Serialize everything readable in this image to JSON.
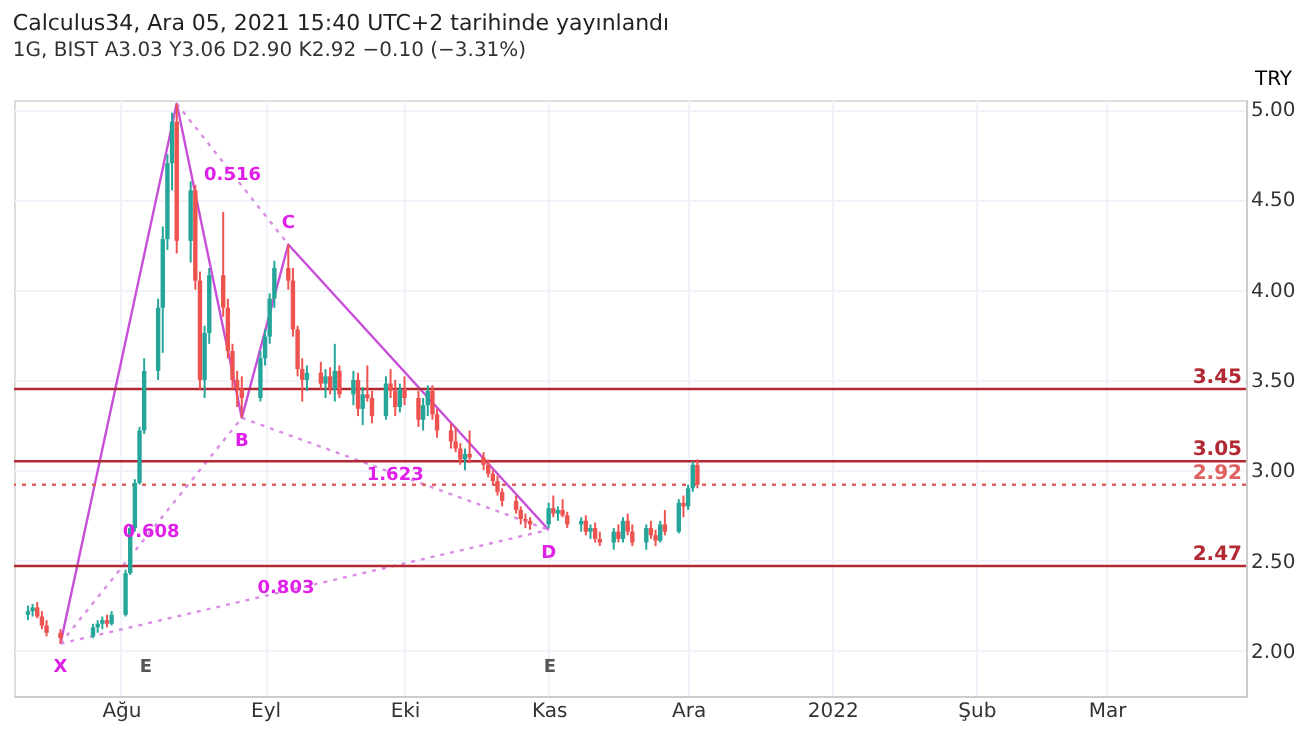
{
  "chart_data": {
    "type": "candlestick",
    "title": "Calculus34, Ara 05, 2021 15:40 UTC+2 tarihinde yayınlandı",
    "subtitle": "1G, BIST  A3.03  Y3.06  D2.90  K2.92  −0.10 (−3.31%)",
    "ylabel": "TRY",
    "x": [
      "2021-07-12",
      "2021-07-13",
      "2021-07-14",
      "2021-07-15",
      "2021-07-16",
      "2021-07-19",
      "2021-07-26",
      "2021-07-27",
      "2021-07-28",
      "2021-07-29",
      "2021-07-30",
      "2021-08-02",
      "2021-08-03",
      "2021-08-04",
      "2021-08-05",
      "2021-08-06",
      "2021-08-09",
      "2021-08-10",
      "2021-08-11",
      "2021-08-12",
      "2021-08-13",
      "2021-08-16",
      "2021-08-17",
      "2021-08-18",
      "2021-08-19",
      "2021-08-20",
      "2021-08-23",
      "2021-08-24",
      "2021-08-25",
      "2021-08-26",
      "2021-08-27",
      "2021-08-31",
      "2021-09-01",
      "2021-09-02",
      "2021-09-03",
      "2021-09-06",
      "2021-09-07",
      "2021-09-08",
      "2021-09-09",
      "2021-09-10",
      "2021-09-13",
      "2021-09-14",
      "2021-09-15",
      "2021-09-16",
      "2021-09-17",
      "2021-09-20",
      "2021-09-21",
      "2021-09-22",
      "2021-09-23",
      "2021-09-24",
      "2021-09-27",
      "2021-09-28",
      "2021-09-29",
      "2021-09-30",
      "2021-10-01",
      "2021-10-04",
      "2021-10-05",
      "2021-10-06",
      "2021-10-07",
      "2021-10-08",
      "2021-10-11",
      "2021-10-12",
      "2021-10-13",
      "2021-10-14",
      "2021-10-15",
      "2021-10-18",
      "2021-10-19",
      "2021-10-20",
      "2021-10-21",
      "2021-10-22",
      "2021-10-25",
      "2021-10-26",
      "2021-10-27",
      "2021-10-28",
      "2021-11-01",
      "2021-11-02",
      "2021-11-03",
      "2021-11-04",
      "2021-11-05",
      "2021-11-08",
      "2021-11-09",
      "2021-11-10",
      "2021-11-11",
      "2021-11-12",
      "2021-11-15",
      "2021-11-16",
      "2021-11-17",
      "2021-11-18",
      "2021-11-19",
      "2021-11-22",
      "2021-11-23",
      "2021-11-24",
      "2021-11-25",
      "2021-11-26",
      "2021-11-29",
      "2021-11-30",
      "2021-12-01",
      "2021-12-02",
      "2021-12-03"
    ],
    "ohlc": [
      [
        2.2,
        2.25,
        2.17,
        2.22
      ],
      [
        2.22,
        2.26,
        2.19,
        2.24
      ],
      [
        2.24,
        2.27,
        2.18,
        2.19
      ],
      [
        2.19,
        2.22,
        2.12,
        2.14
      ],
      [
        2.14,
        2.17,
        2.08,
        2.1
      ],
      [
        2.1,
        2.12,
        2.04,
        2.07
      ],
      [
        2.08,
        2.15,
        2.07,
        2.13
      ],
      [
        2.13,
        2.17,
        2.1,
        2.15
      ],
      [
        2.15,
        2.19,
        2.12,
        2.17
      ],
      [
        2.17,
        2.2,
        2.13,
        2.15
      ],
      [
        2.15,
        2.22,
        2.14,
        2.2
      ],
      [
        2.2,
        2.45,
        2.19,
        2.43
      ],
      [
        2.43,
        2.7,
        2.42,
        2.68
      ],
      [
        2.68,
        2.95,
        2.66,
        2.93
      ],
      [
        2.93,
        3.24,
        2.92,
        3.22
      ],
      [
        3.22,
        3.62,
        3.2,
        3.55
      ],
      [
        3.55,
        3.95,
        3.5,
        3.9
      ],
      [
        3.9,
        4.35,
        3.65,
        4.28
      ],
      [
        4.28,
        4.75,
        4.22,
        4.7
      ],
      [
        4.7,
        4.98,
        4.55,
        4.93
      ],
      [
        4.93,
        5.03,
        4.2,
        4.27
      ],
      [
        4.27,
        4.6,
        4.15,
        4.55
      ],
      [
        4.55,
        4.58,
        4.0,
        4.05
      ],
      [
        4.05,
        4.1,
        3.45,
        3.5
      ],
      [
        3.5,
        3.8,
        3.4,
        3.76
      ],
      [
        3.76,
        4.12,
        3.7,
        4.08
      ],
      [
        4.08,
        4.43,
        3.85,
        3.9
      ],
      [
        3.9,
        3.95,
        3.62,
        3.66
      ],
      [
        3.66,
        3.7,
        3.45,
        3.5
      ],
      [
        3.5,
        3.55,
        3.35,
        3.45
      ],
      [
        3.45,
        3.52,
        3.29,
        3.4
      ],
      [
        3.4,
        3.66,
        3.38,
        3.62
      ],
      [
        3.62,
        3.78,
        3.58,
        3.74
      ],
      [
        3.74,
        3.98,
        3.7,
        3.95
      ],
      [
        3.95,
        4.16,
        3.9,
        4.12
      ],
      [
        4.12,
        4.25,
        4.0,
        4.05
      ],
      [
        4.05,
        4.12,
        3.74,
        3.78
      ],
      [
        3.78,
        3.8,
        3.52,
        3.56
      ],
      [
        3.56,
        3.62,
        3.38,
        3.5
      ],
      [
        3.5,
        3.58,
        3.44,
        3.54
      ],
      [
        3.54,
        3.6,
        3.45,
        3.48
      ],
      [
        3.48,
        3.56,
        3.4,
        3.52
      ],
      [
        3.52,
        3.57,
        3.42,
        3.45
      ],
      [
        3.45,
        3.7,
        3.38,
        3.55
      ],
      [
        3.55,
        3.58,
        3.4,
        3.42
      ],
      [
        3.42,
        3.55,
        3.36,
        3.5
      ],
      [
        3.5,
        3.54,
        3.3,
        3.34
      ],
      [
        3.34,
        3.46,
        3.25,
        3.42
      ],
      [
        3.42,
        3.58,
        3.38,
        3.4
      ],
      [
        3.4,
        3.44,
        3.26,
        3.3
      ],
      [
        3.3,
        3.52,
        3.28,
        3.48
      ],
      [
        3.48,
        3.56,
        3.4,
        3.44
      ],
      [
        3.44,
        3.5,
        3.3,
        3.35
      ],
      [
        3.35,
        3.48,
        3.32,
        3.45
      ],
      [
        3.45,
        3.52,
        3.36,
        3.4
      ],
      [
        3.4,
        3.44,
        3.24,
        3.28
      ],
      [
        3.28,
        3.4,
        3.22,
        3.36
      ],
      [
        3.36,
        3.47,
        3.3,
        3.44
      ],
      [
        3.44,
        3.47,
        3.28,
        3.31
      ],
      [
        3.31,
        3.34,
        3.18,
        3.22
      ],
      [
        3.22,
        3.26,
        3.12,
        3.16
      ],
      [
        3.16,
        3.24,
        3.1,
        3.12
      ],
      [
        3.12,
        3.15,
        3.03,
        3.06
      ],
      [
        3.06,
        3.12,
        3.0,
        3.09
      ],
      [
        3.09,
        3.22,
        3.04,
        3.07
      ],
      [
        3.07,
        3.1,
        3.0,
        3.03
      ],
      [
        3.03,
        3.06,
        2.96,
        2.98
      ],
      [
        2.98,
        3.0,
        2.92,
        2.94
      ],
      [
        2.94,
        2.97,
        2.86,
        2.88
      ],
      [
        2.88,
        2.9,
        2.8,
        2.83
      ],
      [
        2.83,
        2.86,
        2.76,
        2.78
      ],
      [
        2.78,
        2.8,
        2.7,
        2.73
      ],
      [
        2.73,
        2.76,
        2.68,
        2.72
      ],
      [
        2.72,
        2.74,
        2.67,
        2.7
      ],
      [
        2.7,
        2.82,
        2.68,
        2.79
      ],
      [
        2.79,
        2.86,
        2.74,
        2.76
      ],
      [
        2.76,
        2.8,
        2.72,
        2.78
      ],
      [
        2.78,
        2.84,
        2.74,
        2.75
      ],
      [
        2.75,
        2.77,
        2.68,
        2.7
      ],
      [
        2.7,
        2.74,
        2.66,
        2.72
      ],
      [
        2.72,
        2.75,
        2.64,
        2.66
      ],
      [
        2.66,
        2.7,
        2.62,
        2.68
      ],
      [
        2.68,
        2.71,
        2.6,
        2.62
      ],
      [
        2.62,
        2.66,
        2.58,
        2.6
      ],
      [
        2.6,
        2.68,
        2.56,
        2.66
      ],
      [
        2.66,
        2.7,
        2.6,
        2.62
      ],
      [
        2.62,
        2.74,
        2.6,
        2.72
      ],
      [
        2.72,
        2.76,
        2.64,
        2.66
      ],
      [
        2.66,
        2.7,
        2.58,
        2.6
      ],
      [
        2.6,
        2.7,
        2.56,
        2.68
      ],
      [
        2.68,
        2.72,
        2.62,
        2.64
      ],
      [
        2.64,
        2.67,
        2.58,
        2.61
      ],
      [
        2.61,
        2.72,
        2.6,
        2.7
      ],
      [
        2.7,
        2.78,
        2.64,
        2.66
      ],
      [
        2.66,
        2.84,
        2.65,
        2.82
      ],
      [
        2.82,
        2.86,
        2.74,
        2.8
      ],
      [
        2.8,
        2.92,
        2.78,
        2.9
      ],
      [
        2.9,
        3.05,
        2.88,
        3.03
      ],
      [
        3.03,
        3.06,
        2.9,
        2.92
      ]
    ],
    "colors": [
      "#26a69a",
      "#26a69a",
      "#ef5350",
      "#ef5350",
      "#ef5350",
      "#ef5350",
      "#26a69a",
      "#26a69a",
      "#26a69a",
      "#ef5350",
      "#26a69a",
      "#26a69a",
      "#26a69a",
      "#26a69a",
      "#26a69a",
      "#26a69a",
      "#26a69a",
      "#26a69a",
      "#26a69a",
      "#26a69a",
      "#ef5350",
      "#26a69a",
      "#ef5350",
      "#ef5350",
      "#26a69a",
      "#26a69a",
      "#ef5350",
      "#ef5350",
      "#ef5350",
      "#ef5350",
      "#ef5350",
      "#26a69a",
      "#26a69a",
      "#26a69a",
      "#26a69a",
      "#ef5350",
      "#ef5350",
      "#ef5350",
      "#ef5350",
      "#26a69a",
      "#ef5350",
      "#26a69a",
      "#ef5350",
      "#26a69a",
      "#ef5350",
      "#26a69a",
      "#ef5350",
      "#26a69a",
      "#ef5350",
      "#ef5350",
      "#26a69a",
      "#ef5350",
      "#ef5350",
      "#26a69a",
      "#ef5350",
      "#ef5350",
      "#26a69a",
      "#26a69a",
      "#ef5350",
      "#ef5350",
      "#ef5350",
      "#ef5350",
      "#ef5350",
      "#26a69a",
      "#ef5350",
      "#ef5350",
      "#ef5350",
      "#ef5350",
      "#ef5350",
      "#ef5350",
      "#ef5350",
      "#ef5350",
      "#ef5350",
      "#ef5350",
      "#26a69a",
      "#ef5350",
      "#26a69a",
      "#ef5350",
      "#ef5350",
      "#26a69a",
      "#ef5350",
      "#26a69a",
      "#ef5350",
      "#ef5350",
      "#26a69a",
      "#ef5350",
      "#26a69a",
      "#ef5350",
      "#ef5350",
      "#26a69a",
      "#ef5350",
      "#ef5350",
      "#26a69a",
      "#ef5350",
      "#26a69a",
      "#ef5350",
      "#26a69a",
      "#26a69a",
      "#ef5350"
    ],
    "series": [
      {
        "type": "line",
        "color": "#c84fd8",
        "line_style": "solid",
        "x": [
          "2021-07-19",
          "2021-08-13",
          "2021-08-27",
          "2021-09-06",
          "2021-11-01"
        ],
        "values": [
          2.04,
          5.03,
          3.29,
          4.25,
          2.67
        ]
      },
      {
        "type": "line",
        "color": "#d98ee3",
        "line_style": "dotted",
        "x": [
          "2021-07-19",
          "2021-08-27"
        ],
        "values": [
          2.04,
          3.29
        ]
      },
      {
        "type": "line",
        "color": "#d98ee3",
        "line_style": "dotted",
        "x": [
          "2021-08-13",
          "2021-09-06"
        ],
        "values": [
          5.03,
          4.25
        ]
      },
      {
        "type": "line",
        "color": "#d98ee3",
        "line_style": "dotted",
        "x": [
          "2021-08-27",
          "2021-11-01"
        ],
        "values": [
          3.29,
          2.67
        ]
      },
      {
        "type": "line",
        "color": "#d98ee3",
        "line_style": "dotted",
        "x": [
          "2021-07-19",
          "2021-11-01"
        ],
        "values": [
          2.04,
          2.67
        ]
      }
    ],
    "xlim": [
      "2021-07-09",
      "2022-03-31"
    ],
    "xticks": [
      {
        "value": "2021-08-01",
        "label": "Ağu"
      },
      {
        "value": "2021-09-01",
        "label": "Eyl"
      },
      {
        "value": "2021-10-01",
        "label": "Eki"
      },
      {
        "value": "2021-11-01",
        "label": "Kas"
      },
      {
        "value": "2021-12-01",
        "label": "Ara"
      },
      {
        "value": "2022-01-01",
        "label": "2022"
      },
      {
        "value": "2022-02-01",
        "label": "Şub"
      },
      {
        "value": "2022-03-01",
        "label": "Mar"
      }
    ],
    "ylim": [
      1.75,
      5.05
    ],
    "yticks": [
      {
        "value": 2.0,
        "label": "2.00"
      },
      {
        "value": 2.5,
        "label": "2.50"
      },
      {
        "value": 3.0,
        "label": "3.00"
      },
      {
        "value": 3.5,
        "label": "3.50"
      },
      {
        "value": 4.0,
        "label": "4.00"
      },
      {
        "value": 4.5,
        "label": "4.50"
      },
      {
        "value": 5.0,
        "label": "5.00"
      }
    ],
    "grid": true,
    "ref_lines": [
      {
        "axis": "y",
        "value": 3.45,
        "label": "3.45",
        "color": "#b22833",
        "line_style": "solid"
      },
      {
        "axis": "y",
        "value": 3.05,
        "label": "3.05",
        "color": "#b22833",
        "line_style": "solid"
      },
      {
        "axis": "y",
        "value": 2.47,
        "label": "2.47",
        "color": "#b22833",
        "line_style": "solid"
      },
      {
        "axis": "y",
        "value": 2.92,
        "label": "2.92",
        "color": "#e06060",
        "line_style": "dotted"
      }
    ],
    "annotations": [
      {
        "text": "X",
        "x": "2021-07-19",
        "y": 2.04
      },
      {
        "text": "B",
        "x": "2021-08-27",
        "y": 3.29
      },
      {
        "text": "C",
        "x": "2021-09-06",
        "y": 4.25
      },
      {
        "text": "D",
        "x": "2021-11-01",
        "y": 2.67
      },
      {
        "text": "0.516",
        "x": "2021-08-25",
        "y": 4.64
      },
      {
        "text": "0.608",
        "x": "2021-08-07T12:00",
        "y": 2.665
      },
      {
        "text": "1.623",
        "x": "2021-09-29",
        "y": 2.98
      },
      {
        "text": "0.803",
        "x": "2021-09-05T12:00",
        "y": 2.355
      },
      "E",
      "E"
    ]
  }
}
